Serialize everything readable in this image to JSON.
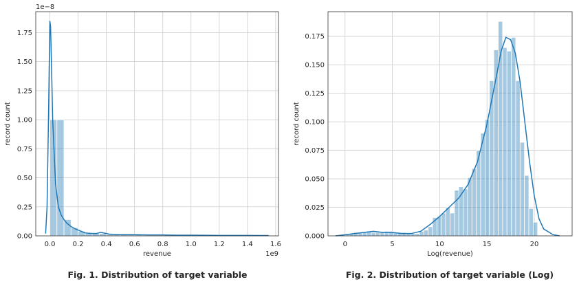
{
  "chart_data": [
    {
      "type": "histogram",
      "caption": "Fig. 1. Distribution of target variable",
      "xlabel": "revenue",
      "ylabel": "record count",
      "x_offset_label": "1e9",
      "y_offset_label": "1e−8",
      "xlim": [
        -0.1,
        1.62
      ],
      "ylim": [
        0,
        1.93
      ],
      "xticks": [
        0.0,
        0.2,
        0.4,
        0.6,
        0.8,
        1.0,
        1.2,
        1.4,
        1.6
      ],
      "xtick_labels": [
        "0.0",
        "0.2",
        "0.4",
        "0.6",
        "0.8",
        "1.0",
        "1.2",
        "1.4",
        "1.6"
      ],
      "yticks": [
        0.0,
        0.25,
        0.5,
        0.75,
        1.0,
        1.25,
        1.5,
        1.75
      ],
      "ytick_labels": [
        "0.00",
        "0.25",
        "0.50",
        "0.75",
        "1.00",
        "1.25",
        "1.50",
        "1.75"
      ],
      "grid": true,
      "bins": [
        {
          "x0": 0.0,
          "x1": 0.05,
          "value": 1.0
        },
        {
          "x0": 0.05,
          "x1": 0.1,
          "value": 1.0
        },
        {
          "x0": 0.1,
          "x1": 0.15,
          "value": 0.14
        },
        {
          "x0": 0.15,
          "x1": 0.2,
          "value": 0.07
        },
        {
          "x0": 0.2,
          "x1": 0.25,
          "value": 0.04
        },
        {
          "x0": 0.25,
          "x1": 0.3,
          "value": 0.02
        },
        {
          "x0": 0.3,
          "x1": 0.35,
          "value": 0.02
        },
        {
          "x0": 0.35,
          "x1": 0.4,
          "value": 0.02
        },
        {
          "x0": 0.4,
          "x1": 0.45,
          "value": 0.01
        },
        {
          "x0": 0.45,
          "x1": 0.5,
          "value": 0.01
        },
        {
          "x0": 0.5,
          "x1": 0.55,
          "value": 0.01
        },
        {
          "x0": 0.55,
          "x1": 0.6,
          "value": 0.01
        },
        {
          "x0": 0.6,
          "x1": 0.65,
          "value": 0.01
        },
        {
          "x0": 0.65,
          "x1": 0.7,
          "value": 0.005
        },
        {
          "x0": 0.7,
          "x1": 0.75,
          "value": 0.005
        },
        {
          "x0": 0.75,
          "x1": 0.8,
          "value": 0.005
        },
        {
          "x0": 0.8,
          "x1": 0.85,
          "value": 0.005
        },
        {
          "x0": 0.85,
          "x1": 0.9,
          "value": 0.005
        },
        {
          "x0": 0.9,
          "x1": 0.95,
          "value": 0.005
        },
        {
          "x0": 0.95,
          "x1": 1.0,
          "value": 0.004
        },
        {
          "x0": 1.0,
          "x1": 1.05,
          "value": 0.004
        },
        {
          "x0": 1.05,
          "x1": 1.1,
          "value": 0.003
        },
        {
          "x0": 1.1,
          "x1": 1.15,
          "value": 0.003
        },
        {
          "x0": 1.15,
          "x1": 1.2,
          "value": 0.003
        },
        {
          "x0": 1.2,
          "x1": 1.25,
          "value": 0.003
        },
        {
          "x0": 1.25,
          "x1": 1.3,
          "value": 0.002
        },
        {
          "x0": 1.3,
          "x1": 1.35,
          "value": 0.002
        },
        {
          "x0": 1.35,
          "x1": 1.4,
          "value": 0.002
        },
        {
          "x0": 1.4,
          "x1": 1.45,
          "value": 0.002
        },
        {
          "x0": 1.45,
          "x1": 1.5,
          "value": 0.002
        },
        {
          "x0": 1.5,
          "x1": 1.55,
          "value": 0.002
        }
      ],
      "kde": {
        "x": [
          -0.03,
          -0.02,
          -0.01,
          0.0,
          0.005,
          0.01,
          0.02,
          0.04,
          0.06,
          0.08,
          0.1,
          0.12,
          0.15,
          0.18,
          0.2,
          0.22,
          0.25,
          0.3,
          0.33,
          0.36,
          0.38,
          0.42,
          0.5,
          0.6,
          0.7,
          0.8,
          0.9,
          1.0,
          1.1,
          1.2,
          1.3,
          1.4,
          1.5,
          1.55
        ],
        "y": [
          0.02,
          0.25,
          1.0,
          1.85,
          1.8,
          1.55,
          1.0,
          0.45,
          0.25,
          0.18,
          0.14,
          0.11,
          0.08,
          0.06,
          0.05,
          0.04,
          0.025,
          0.02,
          0.02,
          0.03,
          0.025,
          0.015,
          0.01,
          0.01,
          0.008,
          0.008,
          0.006,
          0.006,
          0.005,
          0.004,
          0.004,
          0.004,
          0.003,
          0.003
        ]
      }
    },
    {
      "type": "histogram",
      "caption": "Fig. 2. Distribution of target variable (Log)",
      "xlabel": "Log(revenue)",
      "ylabel": "record count",
      "xlim": [
        -1.8,
        24.0
      ],
      "ylim": [
        0,
        0.1965
      ],
      "xticks": [
        0,
        5,
        10,
        15,
        20
      ],
      "xtick_labels": [
        "0",
        "5",
        "10",
        "15",
        "20"
      ],
      "yticks": [
        0.0,
        0.025,
        0.05,
        0.075,
        0.1,
        0.125,
        0.15,
        0.175
      ],
      "ytick_labels": [
        "0.000",
        "0.025",
        "0.050",
        "0.075",
        "0.100",
        "0.125",
        "0.150",
        "0.175"
      ],
      "grid": true,
      "bin_start": 0.0,
      "bin_width": 0.4625,
      "bin_values": [
        0.001,
        0.002,
        0.003,
        0.003,
        0.003,
        0.004,
        0.003,
        0.003,
        0.003,
        0.004,
        0.004,
        0.003,
        0.003,
        0.003,
        0.002,
        0.002,
        0.002,
        0.004,
        0.005,
        0.008,
        0.016,
        0.017,
        0.02,
        0.025,
        0.02,
        0.04,
        0.043,
        0.041,
        0.051,
        0.059,
        0.075,
        0.09,
        0.102,
        0.136,
        0.163,
        0.188,
        0.165,
        0.162,
        0.174,
        0.136,
        0.082,
        0.053,
        0.024,
        0.012
      ],
      "kde": {
        "x": [
          -1.0,
          0,
          1,
          2,
          3,
          4,
          5,
          6,
          7,
          8,
          9,
          10,
          11,
          12,
          13,
          14,
          15,
          16,
          16.5,
          17,
          17.5,
          18,
          18.5,
          19,
          19.5,
          20,
          20.5,
          21,
          22,
          22.7
        ],
        "y": [
          0.0,
          0.001,
          0.002,
          0.003,
          0.004,
          0.003,
          0.003,
          0.002,
          0.002,
          0.004,
          0.01,
          0.017,
          0.025,
          0.033,
          0.045,
          0.065,
          0.098,
          0.14,
          0.162,
          0.174,
          0.172,
          0.16,
          0.135,
          0.1,
          0.065,
          0.035,
          0.015,
          0.006,
          0.001,
          0.0
        ]
      }
    }
  ]
}
